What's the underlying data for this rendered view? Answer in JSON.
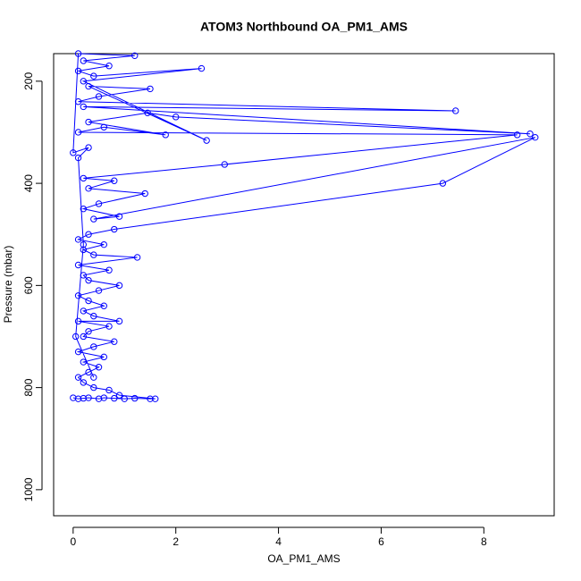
{
  "chart_data": {
    "type": "line",
    "title": "ATOM3 Northbound OA_PM1_AMS",
    "x_label": "OA_PM1_AMS",
    "y_label": "Pressure (mbar)",
    "xlim": [
      -0.38,
      9.37
    ],
    "ylim": [
      1051,
      146
    ],
    "xticks": [
      0,
      2,
      4,
      6,
      8
    ],
    "yticks": [
      200,
      400,
      600,
      800,
      1000
    ],
    "grid": false,
    "markers": "open-circle",
    "series": [
      {
        "color": "#0000ff",
        "x": [
          0.0,
          0.1,
          0.2,
          0.3,
          0.5,
          0.6,
          0.8,
          1.0,
          1.2,
          1.5,
          1.6,
          0.9,
          0.7,
          0.4,
          0.2,
          0.1,
          0.3,
          0.5,
          0.2,
          0.6,
          0.1,
          0.4,
          0.8,
          0.2,
          0.3,
          0.7,
          0.1,
          0.9,
          0.4,
          0.2,
          0.6,
          0.3,
          0.1,
          0.5,
          0.9,
          0.3,
          0.2,
          0.7,
          0.1,
          1.25,
          0.4,
          0.2,
          0.6,
          0.1,
          0.3,
          0.8,
          7.2,
          9.0,
          0.4,
          0.9,
          0.2,
          0.5,
          1.4,
          0.3,
          0.8,
          0.2,
          2.95,
          8.65,
          0.1,
          0.6,
          1.8,
          0.3,
          1.45,
          2.0,
          8.9,
          0.2,
          7.45,
          0.1,
          0.5,
          1.5,
          0.3,
          2.6,
          0.2,
          2.5,
          0.4,
          0.1,
          0.7,
          0.2,
          1.2,
          0.1,
          0.0,
          0.3,
          0.1,
          0.2,
          0.05,
          0.4
        ],
        "values": [
          820,
          822,
          821,
          820,
          822,
          820,
          821,
          822,
          821,
          822,
          822,
          815,
          805,
          800,
          790,
          780,
          770,
          760,
          750,
          740,
          730,
          720,
          710,
          700,
          690,
          680,
          670,
          670,
          660,
          650,
          640,
          630,
          620,
          610,
          600,
          590,
          580,
          570,
          560,
          545,
          540,
          530,
          520,
          510,
          500,
          490,
          400,
          310,
          470,
          465,
          450,
          440,
          420,
          410,
          395,
          390,
          363,
          305,
          300,
          290,
          305,
          280,
          262,
          270,
          303,
          250,
          258,
          240,
          230,
          215,
          210,
          316,
          200,
          175,
          190,
          180,
          170,
          160,
          150,
          146,
          340,
          330,
          350,
          520,
          700,
          780
        ]
      }
    ]
  }
}
